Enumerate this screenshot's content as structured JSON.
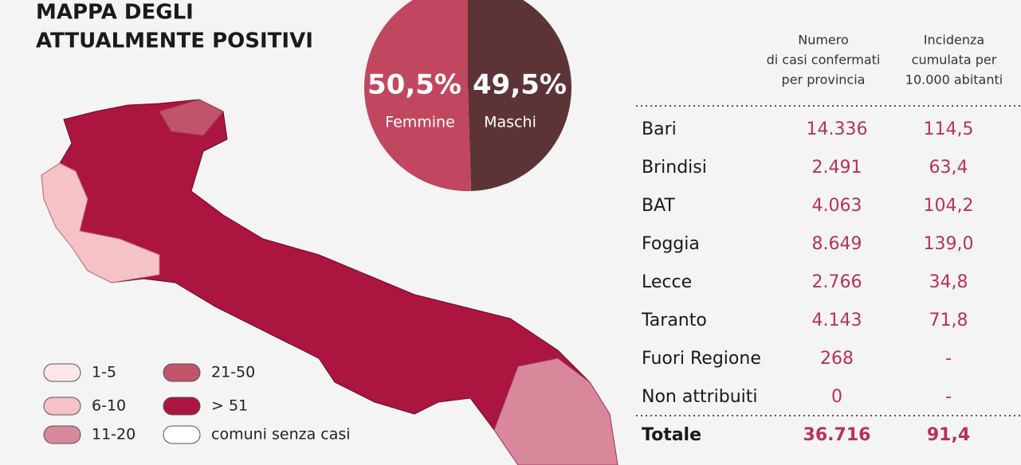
{
  "chart_data": {
    "type": "pie",
    "series": [
      {
        "name": "Femmine",
        "color": "#c0475f",
        "values": [
          50.5
        ],
        "value_labels": [
          "50,5%"
        ]
      },
      {
        "name": "Maschi",
        "color": "#5c3438",
        "values": [
          49.5
        ],
        "value_labels": [
          "49,5%"
        ]
      }
    ]
  },
  "header": {
    "title": [
      "MAPPA DEGLI",
      "ATTUALMENTE POSITIVI"
    ]
  },
  "legend": [
    {
      "label": "1-5",
      "color": "#fde6e6"
    },
    {
      "label": "6-10",
      "color": "#f5c2c8"
    },
    {
      "label": "11-20",
      "color": "#d9879a"
    },
    {
      "label": "21-50",
      "color": "#c0546a"
    },
    {
      "label": "> 51",
      "color": "#ab1540"
    },
    {
      "label": "comuni senza casi",
      "color": "#ffffff"
    }
  ],
  "table": {
    "columns": [
      [
        "Numero",
        "di casi confermati",
        "per provincia"
      ],
      [
        "Incidenza",
        "cumulata per",
        "10.000 abitanti"
      ]
    ],
    "rows": [
      [
        "Bari",
        "14.336",
        "114,5"
      ],
      [
        "Brindisi",
        "2.491",
        "63,4"
      ],
      [
        "BAT",
        "4.063",
        "104,2"
      ],
      [
        "Foggia",
        "8.649",
        "139,0"
      ],
      [
        "Lecce",
        "2.766",
        "34,8"
      ],
      [
        "Taranto",
        "4.143",
        "71,8"
      ],
      [
        "Fuori Regione",
        "268",
        "-"
      ],
      [
        "Non attribuiti",
        "0",
        "-"
      ]
    ],
    "total": [
      "Totale",
      "36.716",
      "91,4"
    ]
  }
}
